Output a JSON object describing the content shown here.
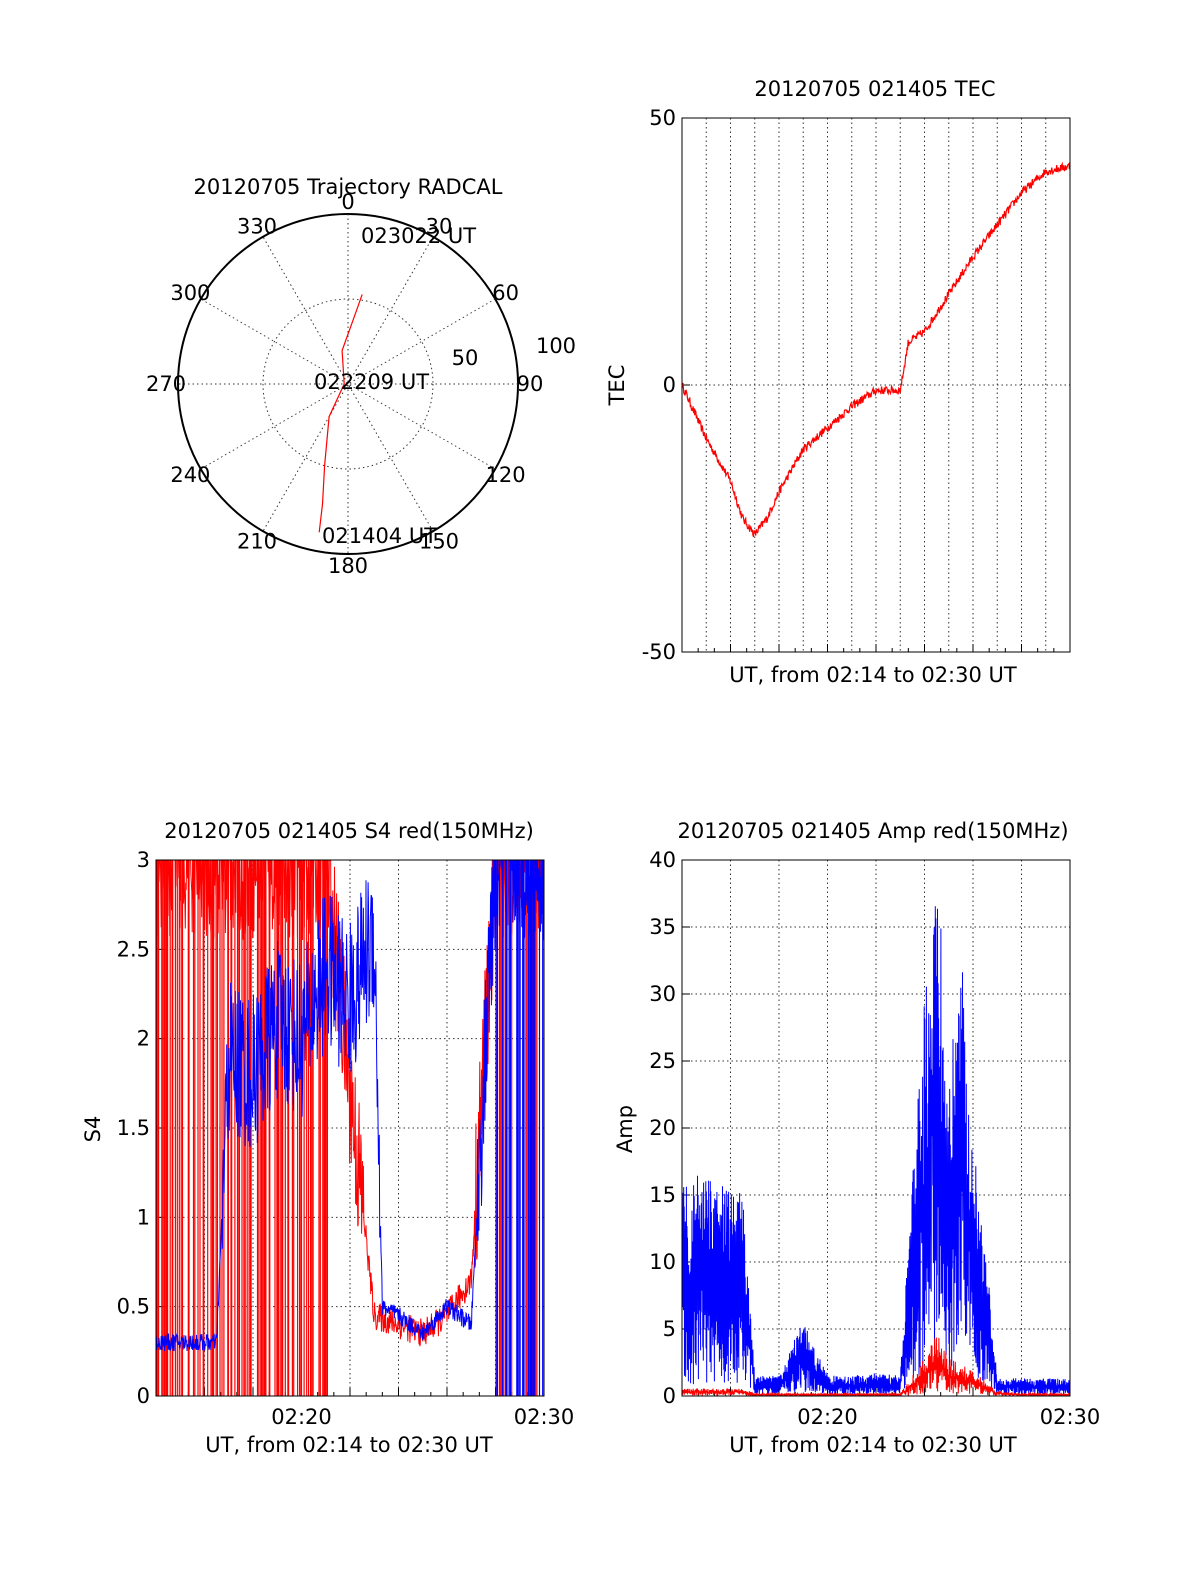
{
  "colors": {
    "red": "#ff0000",
    "blue": "#0000ff",
    "axis": "#000000",
    "background": "#ffffff"
  },
  "chart_data": [
    {
      "type": "polar",
      "title": "20120705 Trajectory RADCAL",
      "azimuth_labels": [
        "0",
        "30",
        "60",
        "90",
        "120",
        "150",
        "180",
        "210",
        "240",
        "270",
        "300",
        "330"
      ],
      "radial_labels": [
        "50",
        "100"
      ],
      "annotations": [
        "023022 UT",
        "022209 UT",
        "021404 UT"
      ],
      "series": [
        {
          "color": "red",
          "points": [
            {
              "az": 191,
              "el": 10
            },
            {
              "az": 192,
              "el": 25
            },
            {
              "az": 196,
              "el": 45
            },
            {
              "az": 210,
              "el": 70
            },
            {
              "az": 270,
              "el": 88
            },
            {
              "az": 350,
              "el": 72
            },
            {
              "az": 5,
              "el": 55
            },
            {
              "az": 9,
              "el": 42
            }
          ]
        }
      ]
    },
    {
      "type": "line",
      "title": "20120705 021405 TEC",
      "xlabel": "UT, from 02:14 to 02:30 UT",
      "ylabel": "TEC",
      "xlim": [
        "02:14",
        "02:30"
      ],
      "ylim": [
        -50,
        50
      ],
      "yticks": [
        "-50",
        "0",
        "50"
      ],
      "xticks": [],
      "grid": true,
      "series": [
        {
          "color": "red",
          "x": [
            "02:14",
            "02:15",
            "02:16",
            "02:16:30",
            "02:17",
            "02:17:30",
            "02:18",
            "02:19",
            "02:20",
            "02:21",
            "02:22",
            "02:23",
            "02:23:20",
            "02:24",
            "02:25",
            "02:26",
            "02:27",
            "02:28",
            "02:29",
            "02:30"
          ],
          "y": [
            0,
            -10,
            -18,
            -25,
            -28,
            -25,
            -20,
            -12,
            -8,
            -4,
            -1,
            -1,
            8,
            10,
            17,
            24,
            30,
            36,
            40,
            41
          ]
        }
      ]
    },
    {
      "type": "line",
      "title": "20120705 021405 S4 red(150MHz)",
      "xlabel": "UT, from 02:14 to 02:30 UT",
      "ylabel": "S4",
      "xlim": [
        "02:14",
        "02:30"
      ],
      "ylim": [
        0,
        3
      ],
      "yticks": [
        "0",
        "0.5",
        "1",
        "1.5",
        "2",
        "2.5",
        "3"
      ],
      "xticks": [
        "02:20",
        "02:30"
      ],
      "grid": true,
      "series": [
        {
          "color": "red",
          "x": [
            "02:14",
            "02:17",
            "02:19",
            "02:21",
            "02:23",
            "02:24",
            "02:25",
            "02:26",
            "02:27",
            "02:28",
            "02:30"
          ],
          "y": [
            3.0,
            3.0,
            3.0,
            3.0,
            0.45,
            0.4,
            0.35,
            0.45,
            0.65,
            3.0,
            3.0
          ]
        },
        {
          "color": "blue",
          "x": [
            "02:14",
            "02:16:30",
            "02:17",
            "02:18",
            "02:19",
            "02:20",
            "02:21",
            "02:22",
            "02:23",
            "02:23:20",
            "02:24",
            "02:25",
            "02:26",
            "02:27",
            "02:28",
            "02:30"
          ],
          "y": [
            0.3,
            0.3,
            1.9,
            1.8,
            2.1,
            2.0,
            2.4,
            2.2,
            2.6,
            0.5,
            0.45,
            0.35,
            0.5,
            0.4,
            3.0,
            3.0
          ]
        }
      ]
    },
    {
      "type": "line",
      "title": "20120705 021405 Amp red(150MHz)",
      "xlabel": "UT, from 02:14 to 02:30 UT",
      "ylabel": "Amp",
      "xlim": [
        "02:14",
        "02:30"
      ],
      "ylim": [
        0,
        40
      ],
      "yticks": [
        "0",
        "5",
        "10",
        "15",
        "20",
        "25",
        "30",
        "35",
        "40"
      ],
      "xticks": [
        "02:20",
        "02:30"
      ],
      "grid": true,
      "series": [
        {
          "color": "blue",
          "x": [
            "02:14",
            "02:16:30",
            "02:17",
            "02:18",
            "02:19",
            "02:20",
            "02:21",
            "02:22",
            "02:23",
            "02:24",
            "02:24:30",
            "02:25",
            "02:25:30",
            "02:26",
            "02:26:30",
            "02:27",
            "02:28",
            "02:30"
          ],
          "y": [
            9,
            8,
            0.8,
            0.8,
            3,
            0.8,
            0.8,
            0.9,
            0.8,
            16,
            22,
            12,
            18,
            10,
            6,
            0.7,
            0.7,
            0.7
          ]
        },
        {
          "color": "red",
          "x": [
            "02:14",
            "02:16:30",
            "02:17",
            "02:23",
            "02:24",
            "02:24:30",
            "02:25",
            "02:26",
            "02:27",
            "02:28",
            "02:30"
          ],
          "y": [
            0.3,
            0.3,
            0.1,
            0.1,
            1.5,
            2.5,
            1.5,
            1.0,
            0.2,
            0.1,
            0.1
          ]
        }
      ]
    }
  ]
}
